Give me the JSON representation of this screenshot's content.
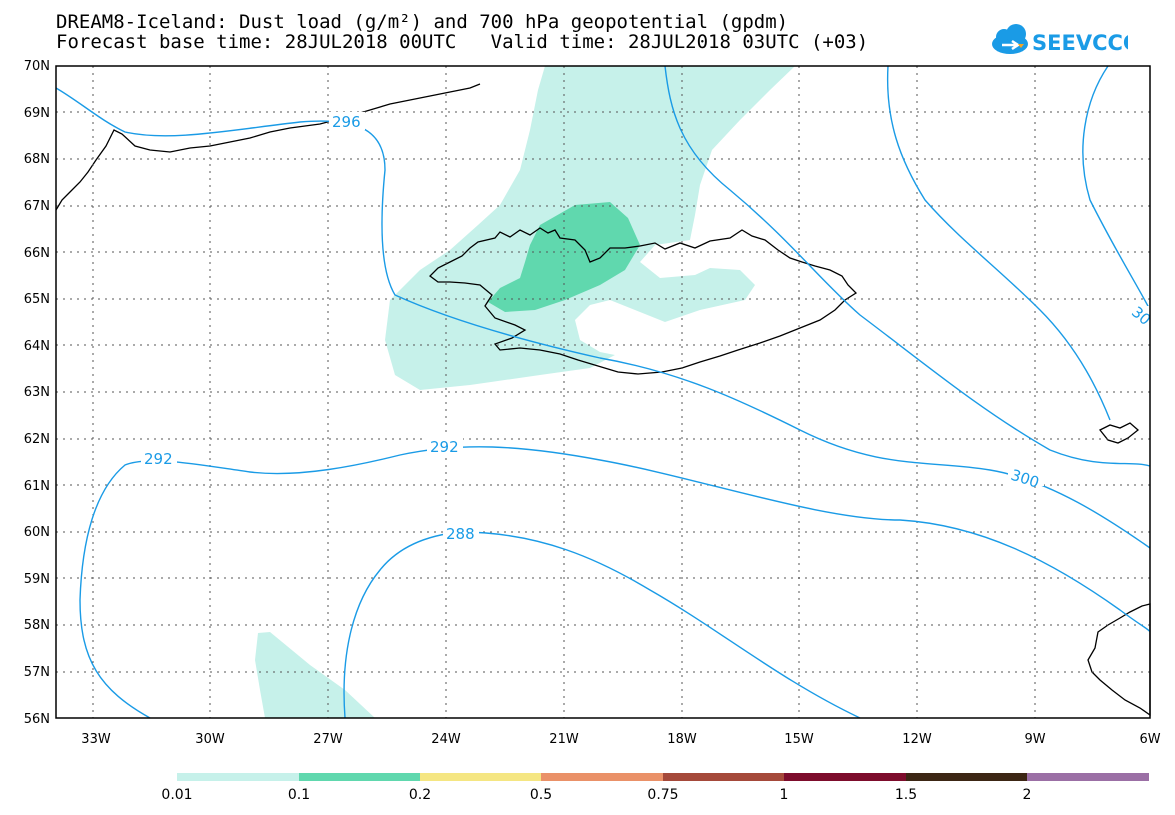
{
  "header": {
    "title_line1": "DREAM8-Iceland: Dust load (g/m²) and 700 hPa geopotential (gpdm)",
    "title_line2": "Forecast base time: 28JUL2018 00UTC   Valid time: 28JUL2018 03UTC (+03)"
  },
  "logo": {
    "text": "SEEVCCC",
    "icon": "cloud-icon",
    "color": "#1a9be6",
    "accent": "#f5a623"
  },
  "map": {
    "lat_labels": [
      "70N",
      "69N",
      "68N",
      "67N",
      "66N",
      "65N",
      "64N",
      "63N",
      "62N",
      "61N",
      "60N",
      "59N",
      "58N",
      "57N",
      "56N"
    ],
    "lon_labels": [
      "33W",
      "30W",
      "27W",
      "24W",
      "21W",
      "18W",
      "15W",
      "12W",
      "9W",
      "6W"
    ],
    "contour_color": "#1a9be6",
    "contour_labels": [
      "296",
      "292",
      "292",
      "288",
      "300",
      "30"
    ],
    "dust_colors": {
      "level_0.01": "#c6f1ea",
      "level_0.1": "#60d8ae"
    }
  },
  "colorbar": {
    "colors": [
      "#c6f1ea",
      "#60d8ae",
      "#f5e682",
      "#ea9168",
      "#a5493a",
      "#7d0c2c",
      "#3c2614",
      "#9b6fa5"
    ],
    "labels": [
      "0.01",
      "0.1",
      "0.2",
      "0.5",
      "0.75",
      "1",
      "1.5",
      "2"
    ]
  }
}
